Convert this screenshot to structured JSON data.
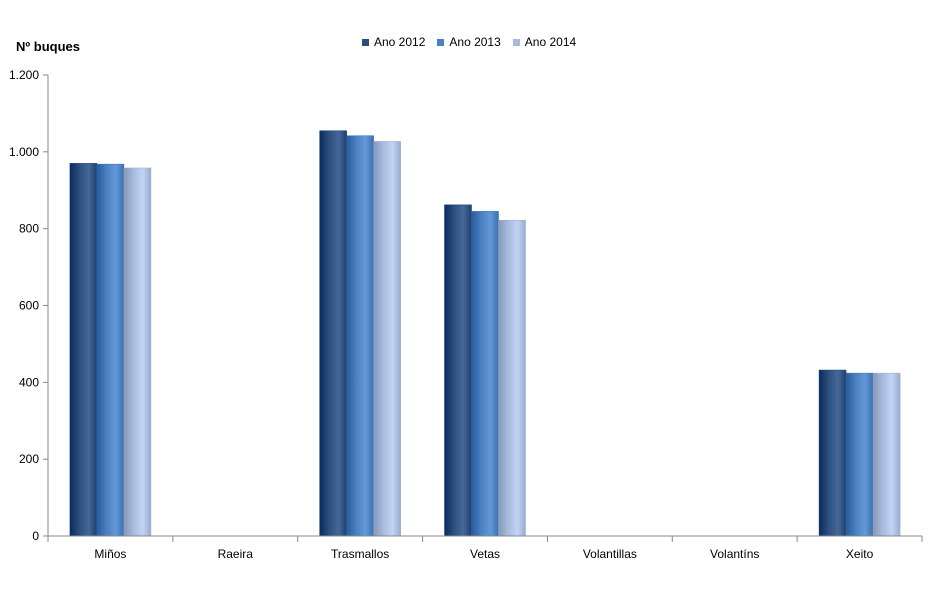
{
  "chart_data": {
    "type": "bar",
    "ylabel": "Nº buques",
    "categories": [
      "Miños",
      "Raeira",
      "Trasmallos",
      "Vetas",
      "Volantillas",
      "Volantíns",
      "Xeito"
    ],
    "series": [
      {
        "name": "Ano 2012",
        "color": "#2d4f7f",
        "values": [
          970,
          0,
          1055,
          862,
          0,
          0,
          432
        ]
      },
      {
        "name": "Ano 2013",
        "color": "#4a7fc0",
        "values": [
          968,
          0,
          1042,
          845,
          0,
          0,
          424
        ]
      },
      {
        "name": "Ano 2014",
        "color": "#a9bbdc",
        "values": [
          958,
          0,
          1027,
          822,
          0,
          0,
          424
        ]
      }
    ],
    "ylim": [
      0,
      1200
    ],
    "yticks": [
      0,
      200,
      400,
      600,
      800,
      1000,
      1200
    ],
    "ytick_labels": [
      "0",
      "200",
      "400",
      "600",
      "800",
      "1.000",
      "1.200"
    ],
    "grid": false,
    "legend_position": "top-center"
  }
}
